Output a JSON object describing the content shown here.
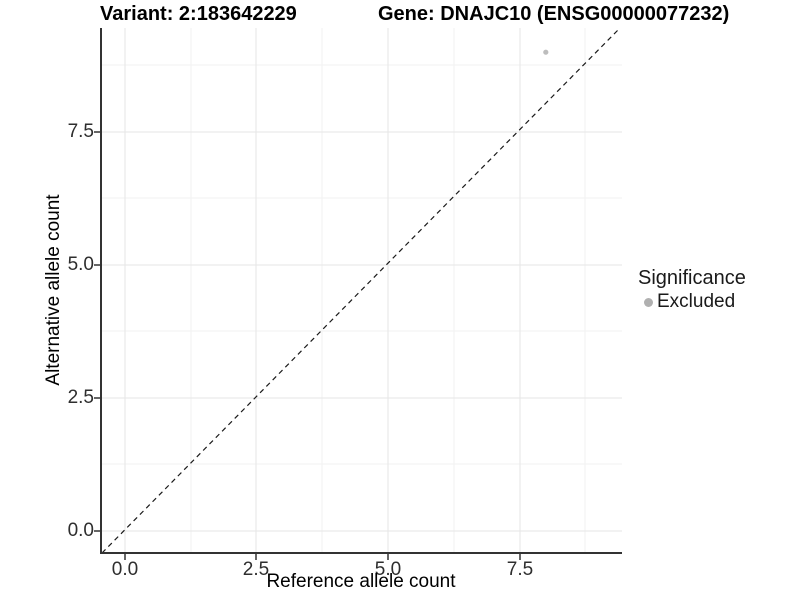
{
  "chart_data": {
    "type": "scatter",
    "titles": [
      {
        "text": "Variant: 2:183642229"
      },
      {
        "text": "Gene: DNAJC10 (ENSG00000077232)"
      }
    ],
    "xlabel": "Reference allele count",
    "ylabel": "Alternative allele count",
    "x_ticks": [
      "0.0",
      "2.5",
      "5.0",
      "7.5"
    ],
    "y_ticks": [
      "0.0",
      "2.5",
      "5.0",
      "7.5"
    ],
    "xlim": [
      -0.45,
      9.45
    ],
    "ylim": [
      -0.45,
      9.45
    ],
    "grid": "major and minor gridlines, light gray, white background",
    "points": [
      {
        "x": 8,
        "y": 9,
        "significance": "Excluded"
      }
    ],
    "diagonal_line": {
      "style": "dashed",
      "slope": 1,
      "intercept": 0,
      "color": "#1a1a1a"
    },
    "legend": {
      "position": "right",
      "title": "Significance",
      "entries": [
        {
          "label": "Excluded",
          "color": "#b0b0b0"
        }
      ]
    },
    "colors": {
      "point": "#bdbdbd",
      "axis_line": "#333333",
      "grid_major": "#e9e9e9",
      "grid_minor": "#f2f2f2",
      "background": "#ffffff",
      "title_text": "#000000",
      "tick_text": "#2e2e2e"
    }
  }
}
